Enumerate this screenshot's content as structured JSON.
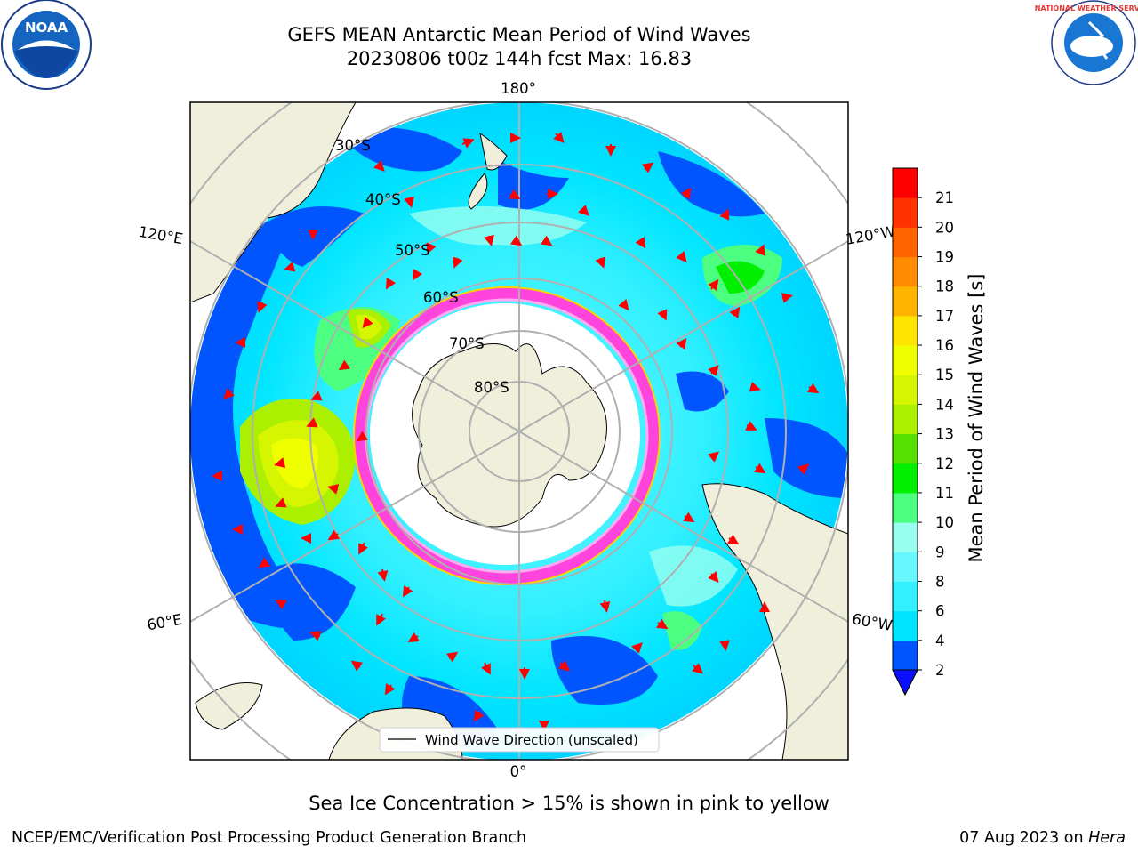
{
  "title_line1": "GEFS MEAN Antarctic Mean Period of Wind Waves",
  "title_line2": "20230806 t00z 144h fcst   Max: 16.83",
  "subcaption": "Sea Ice Concentration > 15% is shown in pink to yellow",
  "footer_left": "NCEP/EMC/Verification Post Processing Product Generation Branch",
  "footer_right_date": "07 Aug 2023 on ",
  "footer_right_machine": "Hera",
  "legend_label": "Wind Wave Direction (unscaled)",
  "logos": {
    "noaa": "NOAA",
    "nws": "NATIONAL WEATHER SERVICE"
  },
  "map": {
    "longitude_labels": {
      "top": "180°",
      "bottom": "0°",
      "upper_left": "120°E",
      "lower_left": "60°E",
      "upper_right": "120°W",
      "lower_right": "60°W"
    },
    "latitude_labels": [
      "30°S",
      "40°S",
      "50°S",
      "60°S",
      "70°S",
      "80°S"
    ]
  },
  "colorbar": {
    "label": "Mean Period of Wind Waves [s]",
    "ticks": [
      "2",
      "4",
      "6",
      "8",
      "9",
      "10",
      "11",
      "12",
      "13",
      "14",
      "15",
      "16",
      "17",
      "18",
      "19",
      "20",
      "21"
    ],
    "colors": [
      "#0055ff",
      "#00e5ff",
      "#33f0ff",
      "#66f7ff",
      "#99fff0",
      "#4cff80",
      "#00f000",
      "#55e000",
      "#aaf000",
      "#d6f500",
      "#f0ff00",
      "#ffe600",
      "#ffb400",
      "#ff8c00",
      "#ff6400",
      "#ff3200",
      "#ff0000"
    ],
    "extend_color": "#0a10ff"
  },
  "colors": {
    "land": "#efefdb",
    "ice": "#ff44dd",
    "arrow": "#ff0000",
    "grid": "#b0b0b0"
  }
}
